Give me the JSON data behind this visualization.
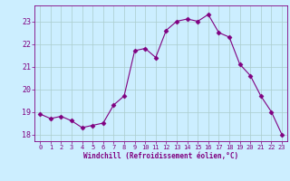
{
  "x": [
    0,
    1,
    2,
    3,
    4,
    5,
    6,
    7,
    8,
    9,
    10,
    11,
    12,
    13,
    14,
    15,
    16,
    17,
    18,
    19,
    20,
    21,
    22,
    23
  ],
  "y": [
    18.9,
    18.7,
    18.8,
    18.6,
    18.3,
    18.4,
    18.5,
    19.3,
    19.7,
    21.7,
    21.8,
    21.4,
    22.6,
    23.0,
    23.1,
    23.0,
    23.3,
    22.5,
    22.3,
    21.1,
    20.6,
    19.7,
    19.0,
    18.0
  ],
  "line_color": "#800080",
  "marker": "D",
  "marker_size": 2.5,
  "background_color": "#cceeff",
  "grid_color": "#aacccc",
  "xlabel": "Windchill (Refroidissement éolien,°C)",
  "xlabel_color": "#800080",
  "tick_color": "#800080",
  "spine_color": "#800080",
  "ylim": [
    17.7,
    23.7
  ],
  "xlim": [
    -0.5,
    23.5
  ],
  "yticks": [
    18,
    19,
    20,
    21,
    22,
    23
  ],
  "xticks": [
    0,
    1,
    2,
    3,
    4,
    5,
    6,
    7,
    8,
    9,
    10,
    11,
    12,
    13,
    14,
    15,
    16,
    17,
    18,
    19,
    20,
    21,
    22,
    23
  ]
}
